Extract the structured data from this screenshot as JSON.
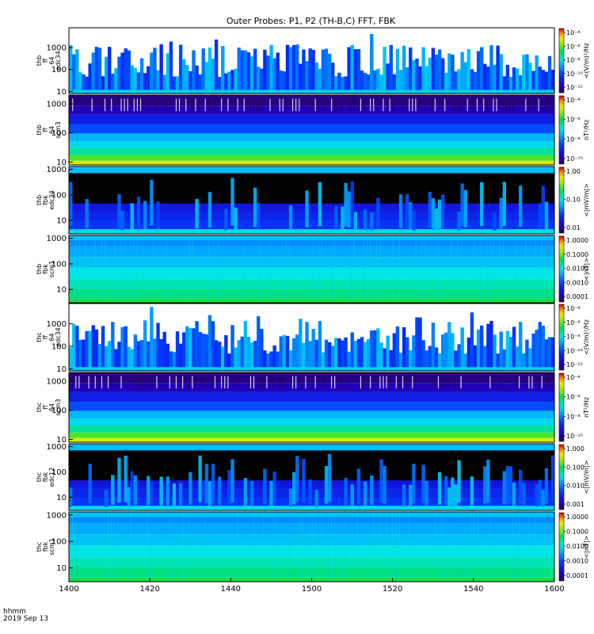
{
  "chart_data": {
    "type": "heatmap",
    "title": "Outer Probes: P1, P2 (TH-B,C) FFT, FBK",
    "x_ticks": [
      "1400",
      "1420",
      "1440",
      "1500",
      "1520",
      "1540",
      "1600"
    ],
    "x_label_line1": "hhmm",
    "x_label_line2": "2019 Sep 13",
    "yscale": "log",
    "panels": [
      {
        "id": "thb-ff-64-edc34",
        "ylabel": [
          "thb",
          "ff",
          "64",
          "edc34"
        ],
        "y_ticks": [
          "1000",
          "100",
          "10"
        ],
        "ylim": [
          8,
          8000
        ],
        "style": "fft-e",
        "colorbar": {
          "label": "<(V/m)²/Hz",
          "ticks": [
            "10⁻⁴",
            "10⁻⁶",
            "10⁻⁸",
            "10⁻¹⁰",
            "10⁻¹²"
          ]
        }
      },
      {
        "id": "thb-ff-64-scm3",
        "ylabel": [
          "thb",
          "ff",
          "64",
          "scm3"
        ],
        "y_ticks": [
          "1000",
          "100",
          "10"
        ],
        "ylim": [
          8,
          2000
        ],
        "style": "fft-b",
        "colorbar": {
          "label": "nT²/Hz",
          "ticks": [
            "10⁻⁴",
            "10⁻⁶",
            "10⁻⁸",
            "10⁻¹⁰"
          ]
        }
      },
      {
        "id": "thb-fbk-edc34",
        "ylabel": [
          "thb",
          "fbk",
          "edc34"
        ],
        "y_ticks": [
          "1000",
          "100",
          "10"
        ],
        "ylim": [
          3,
          1300
        ],
        "style": "fbk-e",
        "colorbar": {
          "label": "<|mV/m|>",
          "ticks": [
            "1.00",
            "0.10",
            "0.01"
          ]
        }
      },
      {
        "id": "thb-fbk-scm1",
        "ylabel": [
          "thb",
          "fbk",
          "scm1"
        ],
        "y_ticks": [
          "1000",
          "100",
          "10"
        ],
        "ylim": [
          3,
          1300
        ],
        "style": "fbk-b",
        "colorbar": {
          "label": "<|nT|>",
          "ticks": [
            "1.0000",
            "0.1000",
            "0.0100",
            "0.0010",
            "0.0001"
          ]
        }
      },
      {
        "id": "thc-ff-64-edc34",
        "ylabel": [
          "thc",
          "ff",
          "64",
          "edc34"
        ],
        "y_ticks": [
          "1000",
          "100",
          "10"
        ],
        "ylim": [
          8,
          8000
        ],
        "style": "fft-e",
        "colorbar": {
          "label": "<(V/m)²/Hz",
          "ticks": [
            "10⁻⁴",
            "10⁻⁶",
            "10⁻⁸",
            "10⁻¹⁰",
            "10⁻¹²"
          ]
        }
      },
      {
        "id": "thc-ff-64-scm3",
        "ylabel": [
          "thc",
          "ff",
          "64",
          "scm3"
        ],
        "y_ticks": [
          "1000",
          "100",
          "10"
        ],
        "ylim": [
          8,
          2000
        ],
        "style": "fft-b",
        "colorbar": {
          "label": "nT²/Hz",
          "ticks": [
            "10⁻⁴",
            "10⁻⁶",
            "10⁻⁸",
            "10⁻¹⁰"
          ]
        }
      },
      {
        "id": "thc-fbk-edc12",
        "ylabel": [
          "thc",
          "fbk",
          "edc12"
        ],
        "y_ticks": [
          "1000",
          "100",
          "10"
        ],
        "ylim": [
          3,
          1300
        ],
        "style": "fbk-e",
        "colorbar": {
          "label": "<|mV/m|>",
          "ticks": [
            "1.000",
            "0.100",
            "0.010",
            "0.001"
          ]
        }
      },
      {
        "id": "thc-fbk-scm1",
        "ylabel": [
          "thc",
          "fbk",
          "scm1"
        ],
        "y_ticks": [
          "1000",
          "100",
          "10"
        ],
        "ylim": [
          3,
          1300
        ],
        "style": "fbk-b",
        "colorbar": {
          "label": "<|nT|>",
          "ticks": [
            "1.0000",
            "0.1000",
            "0.0100",
            "0.0010",
            "0.0001"
          ]
        }
      }
    ]
  }
}
